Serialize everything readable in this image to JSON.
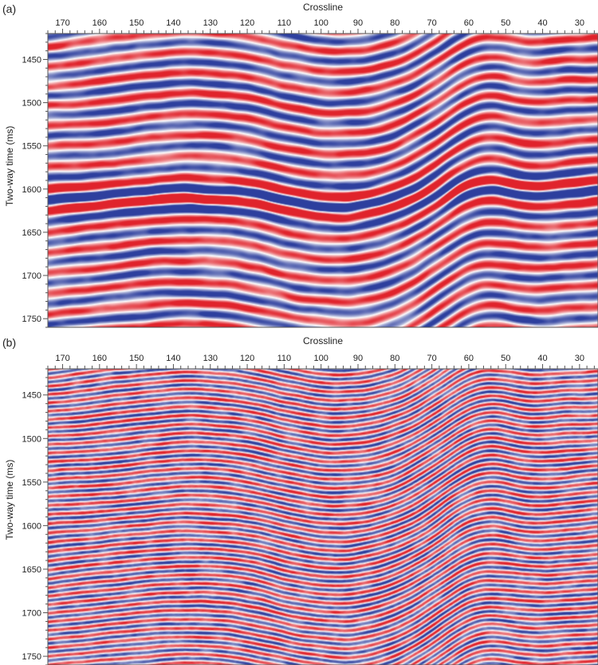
{
  "panels": [
    {
      "label": "(a)",
      "x_title": "Crossline",
      "y_title": "Two-way time (ms)",
      "x_ticks": [
        "170",
        "160",
        "150",
        "140",
        "130",
        "120",
        "110",
        "100",
        "90",
        "80",
        "70",
        "60",
        "50",
        "40",
        "30"
      ],
      "y_ticks": [
        "1450",
        "1500",
        "1550",
        "1600",
        "1650",
        "1700",
        "1750"
      ]
    },
    {
      "label": "(b)",
      "x_title": "Crossline",
      "y_title": "Two-way time (ms)",
      "x_ticks": [
        "170",
        "160",
        "150",
        "140",
        "130",
        "120",
        "110",
        "100",
        "90",
        "80",
        "70",
        "60",
        "50",
        "40",
        "30"
      ],
      "y_ticks": [
        "1450",
        "1500",
        "1550",
        "1600",
        "1650",
        "1700",
        "1750"
      ]
    }
  ],
  "chart_data": [
    {
      "type": "heatmap",
      "title": "",
      "xlabel": "Crossline",
      "ylabel": "Two-way time (ms)",
      "xlim": [
        174,
        25
      ],
      "ylim": [
        1420,
        1760
      ],
      "colors": {
        "positive": "#e0232b",
        "negative": "#2d3f9e",
        "zero": "#ffffff"
      },
      "style": "smooth"
    },
    {
      "type": "heatmap",
      "title": "",
      "xlabel": "Crossline",
      "ylabel": "Two-way time (ms)",
      "xlim": [
        174,
        25
      ],
      "ylim": [
        1420,
        1760
      ],
      "colors": {
        "positive": "#e0232b",
        "negative": "#2d3f9e",
        "zero": "#ffffff"
      },
      "style": "high-resolution"
    }
  ]
}
